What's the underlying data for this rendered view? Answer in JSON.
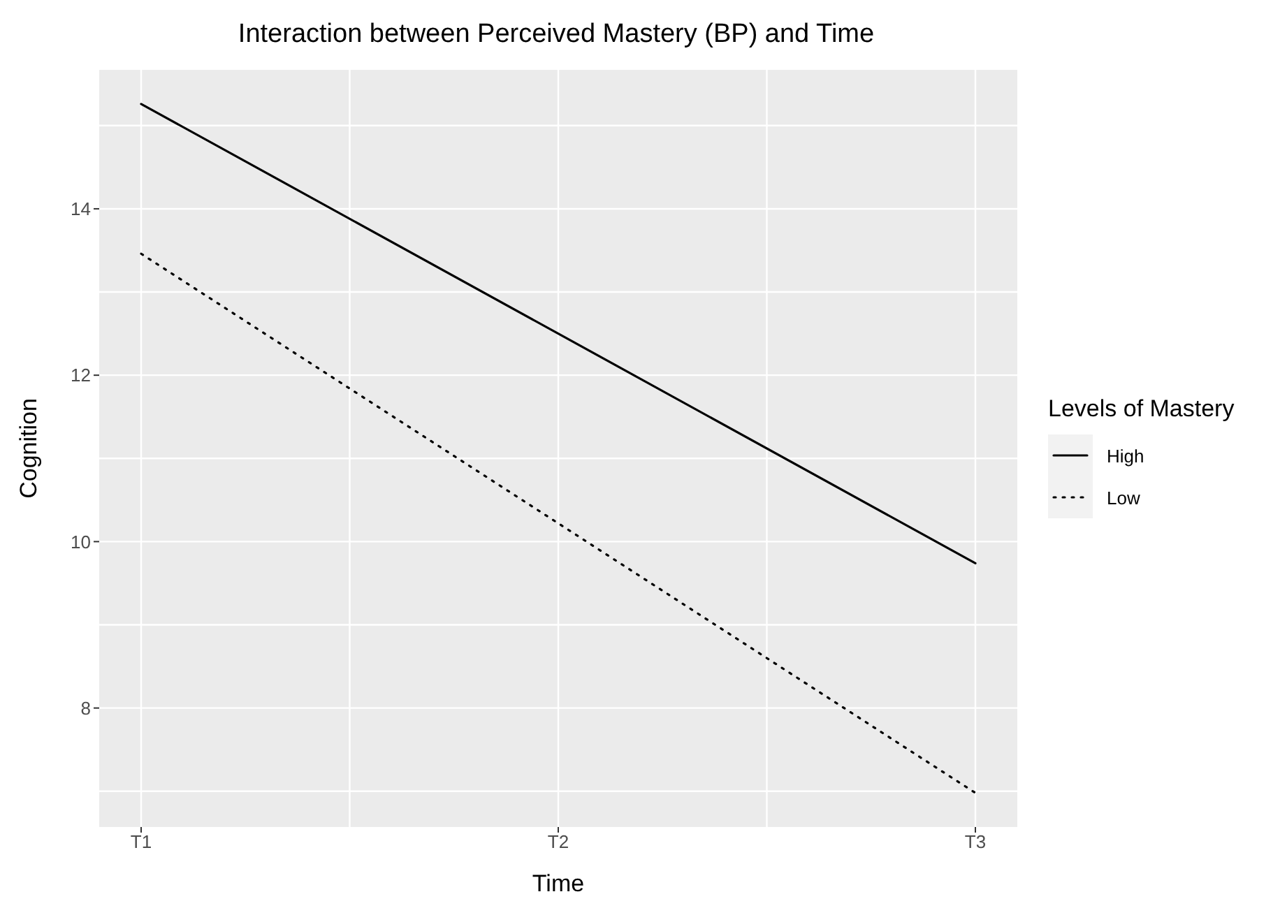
{
  "chart_data": {
    "type": "line",
    "title": "Interaction between Perceived Mastery (BP) and Time",
    "xlabel": "Time",
    "ylabel": "Cognition",
    "legend_title": "Levels of Mastery",
    "categories": [
      "T1",
      "T2",
      "T3"
    ],
    "series": [
      {
        "name": "High",
        "color": "#000000",
        "line_style": "solid",
        "values": [
          15.26,
          12.5,
          9.74
        ]
      },
      {
        "name": "Low",
        "color": "#000000",
        "line_style": "dotted",
        "values": [
          13.46,
          10.22,
          6.98
        ]
      }
    ],
    "ylim": [
      6.57,
      15.67
    ],
    "yticks": [
      8,
      10,
      12,
      14
    ],
    "grid": true,
    "legend": "right",
    "marker": "none"
  }
}
